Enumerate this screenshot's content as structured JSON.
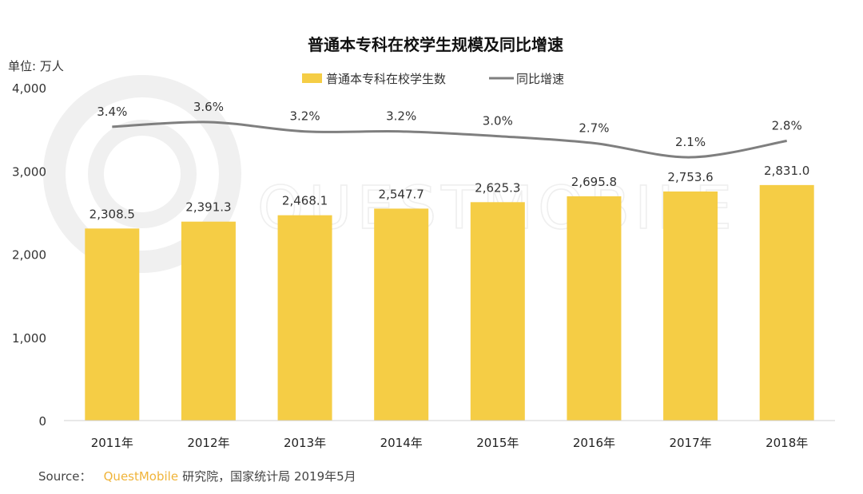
{
  "chart_data": {
    "type": "bar",
    "title": "普通本专科在校学生规模及同比增速",
    "unit_label": "单位: 万人",
    "categories": [
      "2011年",
      "2012年",
      "2013年",
      "2014年",
      "2015年",
      "2016年",
      "2017年",
      "2018年"
    ],
    "series": [
      {
        "name": "普通本专科在校学生数",
        "kind": "bar",
        "color": "#f5cd45",
        "values": [
          2308.5,
          2391.3,
          2468.1,
          2547.7,
          2625.3,
          2695.8,
          2753.6,
          2831.0
        ],
        "labels": [
          "2,308.5",
          "2,391.3",
          "2,468.1",
          "2,547.7",
          "2,625.3",
          "2,695.8",
          "2,753.6",
          "2,831.0"
        ]
      },
      {
        "name": "同比增速",
        "kind": "line",
        "color": "#7f7f7f",
        "values": [
          3.4,
          3.6,
          3.2,
          3.2,
          3.0,
          2.7,
          2.1,
          2.8
        ],
        "labels": [
          "3.4%",
          "3.6%",
          "3.2%",
          "3.2%",
          "3.0%",
          "2.7%",
          "2.1%",
          "2.8%"
        ]
      }
    ],
    "ylim": [
      0,
      4000
    ],
    "yticks": [
      0,
      1000,
      2000,
      3000,
      4000
    ],
    "ytick_labels": [
      "0",
      "1,000",
      "2,000",
      "3,000",
      "4,000"
    ],
    "legend_position": "top-center",
    "grid": false
  },
  "source": {
    "label": "Source：",
    "brand": "QuestMobile",
    "rest": "研究院，国家统计局 2019年5月"
  },
  "watermark": {
    "text": "QUESTMOBILE"
  }
}
